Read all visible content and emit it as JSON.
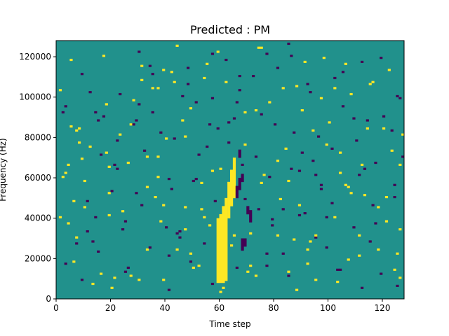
{
  "chart_data": {
    "type": "heatmap",
    "title": "Predicted : PM",
    "xlabel": "Time step",
    "ylabel": "Frequency (Hz)",
    "xlim": [
      0,
      128
    ],
    "ylim": [
      0,
      128000
    ],
    "xticks": [
      0,
      20,
      40,
      60,
      80,
      100,
      120
    ],
    "yticks": [
      0,
      20000,
      40000,
      60000,
      80000,
      100000,
      120000
    ],
    "xtick_labels": [
      "0",
      "20",
      "40",
      "60",
      "80",
      "100",
      "120"
    ],
    "ytick_labels": [
      "0",
      "20000",
      "40000",
      "60000",
      "80000",
      "100000",
      "120000"
    ],
    "grid": false,
    "legend": "none",
    "colormap": "viridis",
    "background_class": 1,
    "class_colors": {
      "0": "#440154",
      "1": "#21918c",
      "2": "#fde725"
    },
    "cells": [
      [
        1,
        40,
        2
      ],
      [
        2,
        60,
        2
      ],
      [
        3,
        62,
        2
      ],
      [
        4,
        37,
        2
      ],
      [
        5,
        85,
        2
      ],
      [
        6,
        18,
        2
      ],
      [
        7,
        83,
        2
      ],
      [
        8,
        77,
        2
      ],
      [
        9,
        69,
        2
      ],
      [
        10,
        45,
        2
      ],
      [
        11,
        33,
        0
      ],
      [
        12,
        75,
        2
      ],
      [
        13,
        28,
        0
      ],
      [
        14,
        92,
        0
      ],
      [
        15,
        23,
        0
      ],
      [
        16,
        12,
        2
      ],
      [
        17,
        90,
        0
      ],
      [
        18,
        72,
        2
      ],
      [
        19,
        65,
        2
      ],
      [
        20,
        53,
        0
      ],
      [
        21,
        10,
        2
      ],
      [
        22,
        78,
        0
      ],
      [
        23,
        81,
        2
      ],
      [
        24,
        43,
        2
      ],
      [
        25,
        38,
        0
      ],
      [
        26,
        67,
        2
      ],
      [
        27,
        11,
        2
      ],
      [
        28,
        98,
        2
      ],
      [
        29,
        88,
        0
      ],
      [
        30,
        96,
        0
      ],
      [
        31,
        108,
        2
      ],
      [
        32,
        73,
        0
      ],
      [
        33,
        55,
        2
      ],
      [
        34,
        115,
        0
      ],
      [
        35,
        111,
        0
      ],
      [
        36,
        50,
        2
      ],
      [
        37,
        104,
        2
      ],
      [
        38,
        82,
        0
      ],
      [
        39,
        46,
        2
      ],
      [
        40,
        35,
        0
      ],
      [
        41,
        21,
        0
      ],
      [
        42,
        112,
        2
      ],
      [
        43,
        79,
        0
      ],
      [
        44,
        24,
        2
      ],
      [
        45,
        30,
        0
      ],
      [
        46,
        100,
        0
      ],
      [
        47,
        34,
        2
      ],
      [
        48,
        106,
        0
      ],
      [
        49,
        94,
        2
      ],
      [
        50,
        15,
        2
      ],
      [
        51,
        59,
        0
      ],
      [
        52,
        71,
        0
      ],
      [
        53,
        57,
        2
      ],
      [
        54,
        27,
        0
      ],
      [
        55,
        116,
        2
      ],
      [
        56,
        36,
        2
      ],
      [
        57,
        99,
        0
      ],
      [
        58,
        48,
        0
      ],
      [
        59,
        84,
        0
      ],
      [
        60,
        64,
        2
      ],
      [
        61,
        20,
        0
      ],
      [
        62,
        118,
        0
      ],
      [
        63,
        41,
        2
      ],
      [
        64,
        26,
        2
      ],
      [
        65,
        89,
        0
      ],
      [
        66,
        52,
        0
      ],
      [
        67,
        103,
        0
      ],
      [
        68,
        66,
        0
      ],
      [
        69,
        76,
        2
      ],
      [
        70,
        13,
        2
      ],
      [
        71,
        32,
        2
      ],
      [
        72,
        110,
        0
      ],
      [
        73,
        70,
        0
      ],
      [
        74,
        44,
        0
      ],
      [
        75,
        91,
        0
      ],
      [
        76,
        61,
        2
      ],
      [
        77,
        16,
        0
      ],
      [
        78,
        97,
        2
      ],
      [
        79,
        39,
        0
      ],
      [
        80,
        86,
        0
      ],
      [
        81,
        114,
        0
      ],
      [
        82,
        49,
        2
      ],
      [
        83,
        22,
        0
      ],
      [
        84,
        74,
        2
      ],
      [
        85,
        58,
        2
      ],
      [
        86,
        120,
        0
      ],
      [
        87,
        29,
        2
      ],
      [
        88,
        105,
        2
      ],
      [
        89,
        63,
        0
      ],
      [
        90,
        93,
        2
      ],
      [
        91,
        42,
        0
      ],
      [
        92,
        17,
        2
      ],
      [
        93,
        102,
        0
      ],
      [
        94,
        68,
        0
      ],
      [
        95,
        31,
        2
      ],
      [
        96,
        80,
        0
      ],
      [
        97,
        54,
        0
      ],
      [
        98,
        119,
        2
      ],
      [
        99,
        25,
        0
      ],
      [
        100,
        87,
        2
      ],
      [
        101,
        47,
        0
      ],
      [
        102,
        109,
        0
      ],
      [
        103,
        14,
        0
      ],
      [
        104,
        72,
        2
      ],
      [
        105,
        95,
        0
      ],
      [
        106,
        56,
        2
      ],
      [
        107,
        19,
        2
      ],
      [
        108,
        101,
        2
      ],
      [
        109,
        35,
        0
      ],
      [
        110,
        78,
        0
      ],
      [
        111,
        61,
        0
      ],
      [
        112,
        117,
        0
      ],
      [
        113,
        51,
        2
      ],
      [
        114,
        84,
        2
      ],
      [
        115,
        28,
        0
      ],
      [
        116,
        107,
        2
      ],
      [
        117,
        67,
        0
      ],
      [
        118,
        45,
        2
      ],
      [
        119,
        12,
        0
      ],
      [
        120,
        90,
        0
      ],
      [
        121,
        38,
        2
      ],
      [
        122,
        113,
        2
      ],
      [
        123,
        73,
        2
      ],
      [
        124,
        56,
        0
      ],
      [
        125,
        22,
        2
      ],
      [
        126,
        99,
        0
      ],
      [
        127,
        81,
        2
      ],
      [
        1,
        103,
        2
      ],
      [
        3,
        95,
        0
      ],
      [
        5,
        118,
        2
      ],
      [
        7,
        27,
        0
      ],
      [
        9,
        111,
        0
      ],
      [
        11,
        48,
        0
      ],
      [
        13,
        7,
        2
      ],
      [
        15,
        88,
        0
      ],
      [
        17,
        120,
        2
      ],
      [
        19,
        41,
        2
      ],
      [
        21,
        66,
        0
      ],
      [
        23,
        101,
        0
      ],
      [
        25,
        13,
        0
      ],
      [
        27,
        86,
        2
      ],
      [
        29,
        52,
        0
      ],
      [
        31,
        115,
        2
      ],
      [
        33,
        24,
        2
      ],
      [
        35,
        92,
        0
      ],
      [
        37,
        70,
        2
      ],
      [
        39,
        9,
        2
      ],
      [
        41,
        59,
        0
      ],
      [
        43,
        107,
        2
      ],
      [
        45,
        33,
        0
      ],
      [
        47,
        80,
        2
      ],
      [
        49,
        18,
        0
      ],
      [
        51,
        97,
        0
      ],
      [
        53,
        44,
        2
      ],
      [
        55,
        75,
        0
      ],
      [
        57,
        63,
        2
      ],
      [
        59,
        122,
        2
      ],
      [
        61,
        5,
        2
      ],
      [
        63,
        87,
        0
      ],
      [
        65,
        31,
        2
      ],
      [
        67,
        110,
        0
      ],
      [
        69,
        49,
        0
      ],
      [
        71,
        16,
        2
      ],
      [
        73,
        93,
        2
      ],
      [
        75,
        57,
        2
      ],
      [
        77,
        121,
        0
      ],
      [
        79,
        36,
        0
      ],
      [
        81,
        68,
        2
      ],
      [
        83,
        104,
        2
      ],
      [
        85,
        11,
        0
      ],
      [
        87,
        82,
        0
      ],
      [
        89,
        46,
        2
      ],
      [
        91,
        117,
        2
      ],
      [
        93,
        28,
        2
      ],
      [
        95,
        61,
        0
      ],
      [
        97,
        99,
        2
      ],
      [
        99,
        40,
        0
      ],
      [
        101,
        74,
        0
      ],
      [
        103,
        8,
        2
      ],
      [
        105,
        112,
        0
      ],
      [
        107,
        55,
        2
      ],
      [
        109,
        89,
        0
      ],
      [
        111,
        21,
        2
      ],
      [
        113,
        64,
        0
      ],
      [
        115,
        106,
        2
      ],
      [
        117,
        37,
        0
      ],
      [
        119,
        119,
        0
      ],
      [
        121,
        50,
        2
      ],
      [
        123,
        83,
        0
      ],
      [
        125,
        6,
        0
      ],
      [
        127,
        70,
        0
      ],
      [
        74,
        124,
        2
      ],
      [
        75,
        124,
        2
      ],
      [
        30,
        122,
        0
      ],
      [
        44,
        125,
        2
      ],
      [
        57,
        121,
        0
      ],
      [
        85,
        126,
        0
      ],
      [
        48,
        114,
        0
      ],
      [
        39,
        113,
        2
      ],
      [
        62,
        107,
        2
      ],
      [
        12,
        102,
        0
      ],
      [
        102,
        104,
        2
      ],
      [
        66,
        97,
        0
      ],
      [
        54,
        109,
        2
      ],
      [
        106,
        116,
        2
      ],
      [
        92,
        106,
        0
      ],
      [
        18,
        96,
        2
      ],
      [
        35,
        104,
        2
      ],
      [
        125,
        100,
        0
      ],
      [
        2,
        92,
        0
      ],
      [
        69,
        92,
        2
      ],
      [
        46,
        88,
        2
      ],
      [
        28,
        86,
        0
      ],
      [
        56,
        86,
        0
      ],
      [
        114,
        88,
        0
      ],
      [
        8,
        84,
        2
      ],
      [
        94,
        83,
        2
      ],
      [
        40,
        79,
        2
      ],
      [
        63,
        77,
        0
      ],
      [
        99,
        76,
        2
      ],
      [
        120,
        84,
        2
      ],
      [
        16,
        71,
        0
      ],
      [
        33,
        70,
        2
      ],
      [
        90,
        72,
        0
      ],
      [
        112,
        66,
        2
      ],
      [
        4,
        66,
        2
      ],
      [
        22,
        64,
        0
      ],
      [
        86,
        64,
        0
      ],
      [
        104,
        62,
        2
      ],
      [
        126,
        66,
        2
      ],
      [
        10,
        58,
        2
      ],
      [
        37,
        60,
        2
      ],
      [
        50,
        58,
        0
      ],
      [
        78,
        60,
        0
      ],
      [
        97,
        56,
        0
      ],
      [
        19,
        52,
        2
      ],
      [
        42,
        54,
        0
      ],
      [
        108,
        52,
        2
      ],
      [
        124,
        50,
        0
      ],
      [
        6,
        48,
        2
      ],
      [
        31,
        46,
        0
      ],
      [
        47,
        45,
        2
      ],
      [
        83,
        44,
        0
      ],
      [
        116,
        46,
        0
      ],
      [
        14,
        40,
        0
      ],
      [
        38,
        38,
        2
      ],
      [
        54,
        40,
        2
      ],
      [
        89,
        41,
        0
      ],
      [
        102,
        40,
        2
      ],
      [
        126,
        34,
        2
      ],
      [
        24,
        34,
        0
      ],
      [
        44,
        32,
        0
      ],
      [
        81,
        31,
        2
      ],
      [
        95,
        30,
        0
      ],
      [
        111,
        31,
        2
      ],
      [
        7,
        30,
        2
      ],
      [
        34,
        25,
        0
      ],
      [
        49,
        22,
        2
      ],
      [
        77,
        22,
        0
      ],
      [
        92,
        24,
        2
      ],
      [
        118,
        24,
        2
      ],
      [
        3,
        17,
        0
      ],
      [
        26,
        15,
        0
      ],
      [
        52,
        16,
        2
      ],
      [
        66,
        15,
        0
      ],
      [
        85,
        13,
        2
      ],
      [
        104,
        14,
        0
      ],
      [
        124,
        14,
        2
      ],
      [
        9,
        9,
        0
      ],
      [
        30,
        9,
        2
      ],
      [
        57,
        7,
        0
      ],
      [
        73,
        11,
        2
      ],
      [
        95,
        9,
        2
      ],
      [
        126,
        10,
        2
      ],
      [
        20,
        5,
        2
      ],
      [
        41,
        4,
        0
      ],
      [
        60,
        3,
        2
      ],
      [
        88,
        4,
        2
      ],
      [
        112,
        5,
        0
      ]
    ]
  }
}
